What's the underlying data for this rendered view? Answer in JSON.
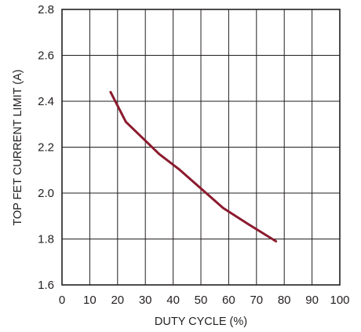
{
  "chart_data": {
    "type": "line",
    "xlabel": "DUTY CYCLE (%)",
    "ylabel": "TOP FET CURRENT LIMIT (A)",
    "xlim": [
      0,
      100
    ],
    "ylim": [
      1.6,
      2.8
    ],
    "x_ticks": [
      "0",
      "10",
      "20",
      "30",
      "40",
      "50",
      "60",
      "70",
      "80",
      "90",
      "100"
    ],
    "y_ticks": [
      "1.6",
      "1.8",
      "2.0",
      "2.2",
      "2.4",
      "2.6",
      "2.8"
    ],
    "grid": true,
    "series": [
      {
        "color": "#8b1a2e",
        "x": [
          17.5,
          23,
          29,
          35,
          42,
          50,
          58,
          67,
          77
        ],
        "y": [
          2.44,
          2.31,
          2.24,
          2.17,
          2.105,
          2.02,
          1.935,
          1.865,
          1.79
        ]
      }
    ]
  }
}
